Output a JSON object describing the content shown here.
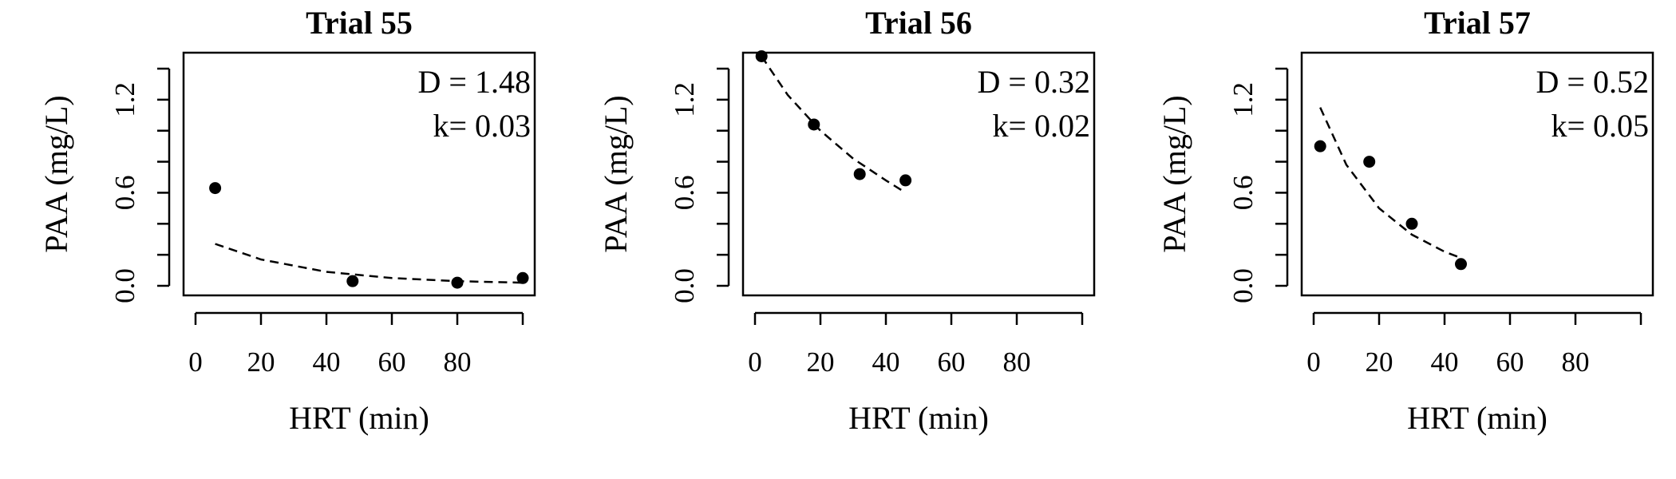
{
  "chart_data": [
    {
      "type": "scatter",
      "title": "Trial 55",
      "xlabel": "HRT (min)",
      "ylabel": "PAA (mg/L)",
      "xlim": [
        0,
        100
      ],
      "ylim": [
        0,
        1.4
      ],
      "x_ticks": [
        "0",
        "20",
        "40",
        "60",
        "80"
      ],
      "y_ticks": [
        "0.0",
        "0.6",
        "1.2"
      ],
      "annotations": [
        "D = 1.48",
        "k= 0.03"
      ],
      "points": [
        {
          "x": 6,
          "y": 0.63
        },
        {
          "x": 48,
          "y": 0.03
        },
        {
          "x": 80,
          "y": 0.02
        },
        {
          "x": 100,
          "y": 0.05
        }
      ],
      "fit": {
        "style": "dashed",
        "x": [
          6,
          20,
          40,
          60,
          80,
          100
        ],
        "y": [
          0.27,
          0.17,
          0.09,
          0.05,
          0.03,
          0.02
        ]
      }
    },
    {
      "type": "scatter",
      "title": "Trial 56",
      "xlabel": "HRT (min)",
      "ylabel": "PAA (mg/L)",
      "xlim": [
        0,
        100
      ],
      "ylim": [
        0,
        1.4
      ],
      "x_ticks": [
        "0",
        "20",
        "40",
        "60",
        "80"
      ],
      "y_ticks": [
        "0.0",
        "0.6",
        "1.2"
      ],
      "annotations": [
        "D = 0.32",
        "k= 0.02"
      ],
      "points": [
        {
          "x": 2,
          "y": 1.48
        },
        {
          "x": 18,
          "y": 1.04
        },
        {
          "x": 32,
          "y": 0.72
        },
        {
          "x": 46,
          "y": 0.68
        }
      ],
      "fit": {
        "style": "dashed",
        "x": [
          2,
          10,
          20,
          30,
          40,
          46
        ],
        "y": [
          1.48,
          1.23,
          1.0,
          0.82,
          0.68,
          0.6
        ]
      }
    },
    {
      "type": "scatter",
      "title": "Trial 57",
      "xlabel": "HRT (min)",
      "ylabel": "PAA (mg/L)",
      "xlim": [
        0,
        100
      ],
      "ylim": [
        0,
        1.4
      ],
      "x_ticks": [
        "0",
        "20",
        "40",
        "60",
        "80"
      ],
      "y_ticks": [
        "0.0",
        "0.6",
        "1.2"
      ],
      "annotations": [
        "D = 0.52",
        "k= 0.05"
      ],
      "points": [
        {
          "x": 2,
          "y": 0.9
        },
        {
          "x": 17,
          "y": 0.8
        },
        {
          "x": 30,
          "y": 0.4
        },
        {
          "x": 45,
          "y": 0.14
        }
      ],
      "fit": {
        "style": "dashed",
        "x": [
          2,
          10,
          20,
          30,
          40,
          45
        ],
        "y": [
          1.15,
          0.78,
          0.5,
          0.33,
          0.22,
          0.18
        ]
      }
    }
  ]
}
